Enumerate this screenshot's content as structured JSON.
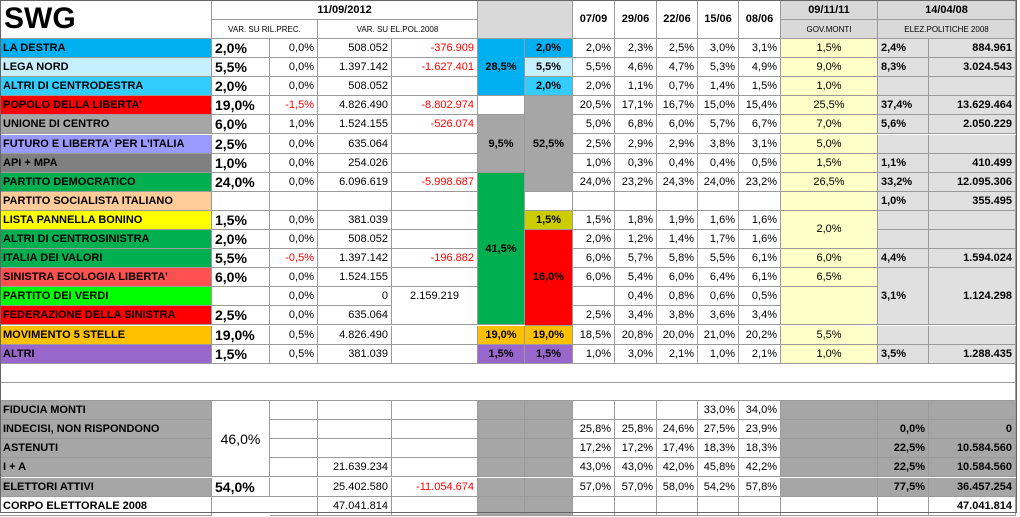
{
  "brand": "SWG",
  "headers": {
    "date_main": "11/09/2012",
    "var_ril": "VAR. SU RIL.PREC.",
    "var_el": "VAR. SU EL.POL.2008",
    "history_dates": [
      "07/09",
      "29/06",
      "22/06",
      "15/06",
      "08/06"
    ],
    "gov_date": "09/11/11",
    "gov_label": "GOV.MONTI",
    "el_date": "14/04/08",
    "el_label": "ELEZ.POLITICHE 2008"
  },
  "rows": [
    {
      "name": "LA DESTRA",
      "pct": "2,0%",
      "var": "0,0%",
      "votes": "508.052",
      "varel": "-376.909",
      "sub": "2,0%",
      "h": [
        "2,0%",
        "2,3%",
        "2,5%",
        "3,0%",
        "3,1%"
      ],
      "gov": "1,5%",
      "elp": "2,4%",
      "elv": "884.961"
    },
    {
      "name": "LEGA NORD",
      "pct": "5,5%",
      "var": "0,0%",
      "votes": "1.397.142",
      "varel": "-1.627.401",
      "sub": "5,5%",
      "h": [
        "5,5%",
        "4,6%",
        "4,7%",
        "5,3%",
        "4,9%"
      ],
      "gov": "9,0%",
      "elp": "8,3%",
      "elv": "3.024.543"
    },
    {
      "name": "ALTRI DI CENTRODESTRA",
      "pct": "2,0%",
      "var": "0,0%",
      "votes": "508.052",
      "varel": "",
      "sub": "2,0%",
      "h": [
        "2,0%",
        "1,1%",
        "0,7%",
        "1,4%",
        "1,5%"
      ],
      "gov": "1,0%",
      "elp": "",
      "elv": ""
    },
    {
      "name": "POPOLO DELLA LIBERTA'",
      "pct": "19,0%",
      "var": "-1,5%",
      "votes": "4.826.490",
      "varel": "-8.802.974",
      "sub": "",
      "h": [
        "20,5%",
        "17,1%",
        "16,7%",
        "15,0%",
        "15,4%"
      ],
      "gov": "25,5%",
      "elp": "37,4%",
      "elv": "13.629.464"
    },
    {
      "name": "UNIONE DI CENTRO",
      "pct": "6,0%",
      "var": "1,0%",
      "votes": "1.524.155",
      "varel": "-526.074",
      "sub": "",
      "h": [
        "5,0%",
        "6,8%",
        "6,0%",
        "5,7%",
        "6,7%"
      ],
      "gov": "7,0%",
      "elp": "5,6%",
      "elv": "2.050.229"
    },
    {
      "name": "FUTURO E LIBERTA' PER L'ITALIA",
      "pct": "2,5%",
      "var": "0,0%",
      "votes": "635.064",
      "varel": "",
      "sub": "",
      "h": [
        "2,5%",
        "2,9%",
        "2,9%",
        "3,8%",
        "3,1%"
      ],
      "gov": "5,0%",
      "elp": "",
      "elv": ""
    },
    {
      "name": "API + MPA",
      "pct": "1,0%",
      "var": "0,0%",
      "votes": "254.026",
      "varel": "",
      "sub": "",
      "h": [
        "1,0%",
        "0,3%",
        "0,4%",
        "0,4%",
        "0,5%"
      ],
      "gov": "1,5%",
      "elp": "1,1%",
      "elv": "410.499"
    },
    {
      "name": "PARTITO DEMOCRATICO",
      "pct": "24,0%",
      "var": "0,0%",
      "votes": "6.096.619",
      "varel": "-5.998.687",
      "sub": "",
      "h": [
        "24,0%",
        "23,2%",
        "24,3%",
        "24,0%",
        "23,2%"
      ],
      "gov": "26,5%",
      "elp": "33,2%",
      "elv": "12.095.306"
    },
    {
      "name": "PARTITO SOCIALISTA ITALIANO",
      "pct": "",
      "var": "",
      "votes": "",
      "varel": "",
      "sub": "",
      "h": [
        "",
        "",
        "",
        "",
        ""
      ],
      "gov": "",
      "elp": "1,0%",
      "elv": "355.495"
    },
    {
      "name": "LISTA PANNELLA BONINO",
      "pct": "1,5%",
      "var": "0,0%",
      "votes": "381.039",
      "varel": "",
      "sub": "1,5%",
      "h": [
        "1,5%",
        "1,8%",
        "1,9%",
        "1,6%",
        "1,6%"
      ],
      "gov": "",
      "elp": "",
      "elv": ""
    },
    {
      "name": "ALTRI DI CENTROSINISTRA",
      "pct": "2,0%",
      "var": "0,0%",
      "votes": "508.052",
      "varel": "",
      "sub": "",
      "h": [
        "2,0%",
        "1,2%",
        "1,4%",
        "1,7%",
        "1,6%"
      ],
      "gov": "",
      "elp": "",
      "elv": ""
    },
    {
      "name": "ITALIA DEI VALORI",
      "pct": "5,5%",
      "var": "-0,5%",
      "votes": "1.397.142",
      "varel": "-196.882",
      "sub": "",
      "h": [
        "6,0%",
        "5,7%",
        "5,8%",
        "5,5%",
        "6,1%"
      ],
      "gov": "6,0%",
      "elp": "4,4%",
      "elv": "1.594.024"
    },
    {
      "name": "SINISTRA ECOLOGIA LIBERTA'",
      "pct": "6,0%",
      "var": "0,0%",
      "votes": "1.524.155",
      "varel": "",
      "sub": "",
      "h": [
        "6,0%",
        "5,4%",
        "6,0%",
        "6,4%",
        "6,1%"
      ],
      "gov": "6,5%",
      "elp": "",
      "elv": ""
    },
    {
      "name": "PARTITO DEI VERDI",
      "pct": "",
      "var": "0,0%",
      "votes": "0",
      "varel": "2.159.219",
      "sub": "",
      "h": [
        "",
        "0,4%",
        "0,8%",
        "0,6%",
        "0,5%"
      ],
      "gov": "",
      "elp": "",
      "elv": ""
    },
    {
      "name": "FEDERAZIONE DELLA SINISTRA",
      "pct": "2,5%",
      "var": "0,0%",
      "votes": "635.064",
      "varel": "",
      "sub": "",
      "h": [
        "2,5%",
        "3,4%",
        "3,8%",
        "3,6%",
        "3,4%"
      ],
      "gov": "2,0%",
      "elp": "",
      "elv": ""
    },
    {
      "name": "MOVIMENTO 5 STELLE",
      "pct": "19,0%",
      "var": "0,5%",
      "votes": "4.826.490",
      "varel": "",
      "sub": "19,0%",
      "h": [
        "18,5%",
        "20,8%",
        "20,0%",
        "21,0%",
        "20,2%"
      ],
      "gov": "5,5%",
      "elp": "",
      "elv": ""
    },
    {
      "name": "ALTRI",
      "pct": "1,5%",
      "var": "0,5%",
      "votes": "381.039",
      "varel": "",
      "sub": "1,5%",
      "h": [
        "1,0%",
        "3,0%",
        "2,1%",
        "1,0%",
        "2,1%"
      ],
      "gov": "1,0%",
      "elp": "3,5%",
      "elv": "1.288.435"
    }
  ],
  "coalitions": {
    "centrodestra": "28,5%",
    "centro": "9,5%",
    "centro_big": "52,5%",
    "centrosinistra": "41,5%",
    "sinistra": "16,0%",
    "m5s": "19,0%",
    "altri": "1,5%",
    "pannella": "1,5%"
  },
  "merged": {
    "sc_elp": "3,1%",
    "sc_elv": "1.124.298",
    "sc_gov": "2,0%",
    "blank_gov": "1,0%"
  },
  "bottom": [
    {
      "name": "FIDUCIA MONTI",
      "h": [
        "",
        "",
        "",
        "33,0%",
        "34,0%"
      ],
      "gov": "",
      "elp": "",
      "elv": "",
      "votes": "",
      "varel": ""
    },
    {
      "name": "INDECISI, NON RISPONDONO",
      "h": [
        "25,8%",
        "25,8%",
        "24,6%",
        "27,5%",
        "23,9%"
      ],
      "gov": "",
      "elp": "0,0%",
      "elv": "0",
      "votes": "",
      "varel": ""
    },
    {
      "name": "ASTENUTI",
      "h": [
        "17,2%",
        "17,2%",
        "17,4%",
        "18,3%",
        "18,3%"
      ],
      "gov": "",
      "elp": "22,5%",
      "elv": "10.584.560",
      "votes": "",
      "varel": ""
    },
    {
      "name": "I + A",
      "h": [
        "43,0%",
        "43,0%",
        "42,0%",
        "45,8%",
        "42,2%"
      ],
      "gov": "",
      "elp": "22,5%",
      "elv": "10.584.560",
      "votes": "21.639.234",
      "varel": ""
    },
    {
      "name": "ELETTORI ATTIVI",
      "h": [
        "57,0%",
        "57,0%",
        "58,0%",
        "54,2%",
        "57,8%"
      ],
      "gov": "",
      "elp": "77,5%",
      "elv": "36.457.254",
      "votes": "25.402.580",
      "varel": "-11.054.674",
      "pct": "54,0%"
    },
    {
      "name": "CORPO ELETTORALE 2008",
      "h": [
        "",
        "",
        "",
        "",
        ""
      ],
      "gov": "",
      "elp": "",
      "elv": "47.041.814",
      "votes": "47.041.814",
      "varel": ""
    }
  ],
  "bottom_merged": {
    "astenuti_pct": "46,0%"
  }
}
